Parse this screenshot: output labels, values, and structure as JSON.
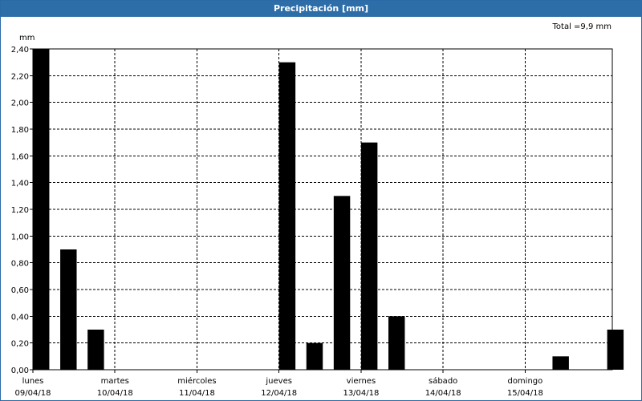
{
  "chart_data": {
    "type": "bar",
    "title": "Precipitación [mm]",
    "ylabel": "mm",
    "annotation": "Total =9,9 mm",
    "ylim": [
      0,
      2.4
    ],
    "yticks": [
      "0,00",
      "0,20",
      "0,40",
      "0,60",
      "0,80",
      "1,00",
      "1,20",
      "1,40",
      "1,60",
      "1,80",
      "2,00",
      "2,20",
      "2,40"
    ],
    "xlim_days": [
      0,
      7.0625
    ],
    "days": [
      {
        "name": "lunes",
        "date": "09/04/18"
      },
      {
        "name": "martes",
        "date": "10/04/18"
      },
      {
        "name": "miércoles",
        "date": "11/04/18"
      },
      {
        "name": "jueves",
        "date": "12/04/18"
      },
      {
        "name": "viernes",
        "date": "13/04/18"
      },
      {
        "name": "sábado",
        "date": "14/04/18"
      },
      {
        "name": "domingo",
        "date": "15/04/18"
      }
    ],
    "grid": true,
    "series": [
      {
        "values": [
          {
            "time": "09/04/18 00:00",
            "value": 2.4
          },
          {
            "time": "09/04/18 08:00",
            "value": 0.9
          },
          {
            "time": "09/04/18 16:00",
            "value": 0.3
          },
          {
            "time": "12/04/18 00:00",
            "value": 2.3
          },
          {
            "time": "12/04/18 08:00",
            "value": 0.2
          },
          {
            "time": "12/04/18 16:00",
            "value": 1.3
          },
          {
            "time": "13/04/18 00:00",
            "value": 1.7
          },
          {
            "time": "13/04/18 08:00",
            "value": 0.4
          },
          {
            "time": "15/04/18 08:00",
            "value": 0.1
          },
          {
            "time": "16/04/18 00:00",
            "value": 0.3
          }
        ]
      }
    ]
  },
  "colors": {
    "bar": "#000000",
    "titlebar": "#2e6ea8",
    "grid": "#000000"
  }
}
